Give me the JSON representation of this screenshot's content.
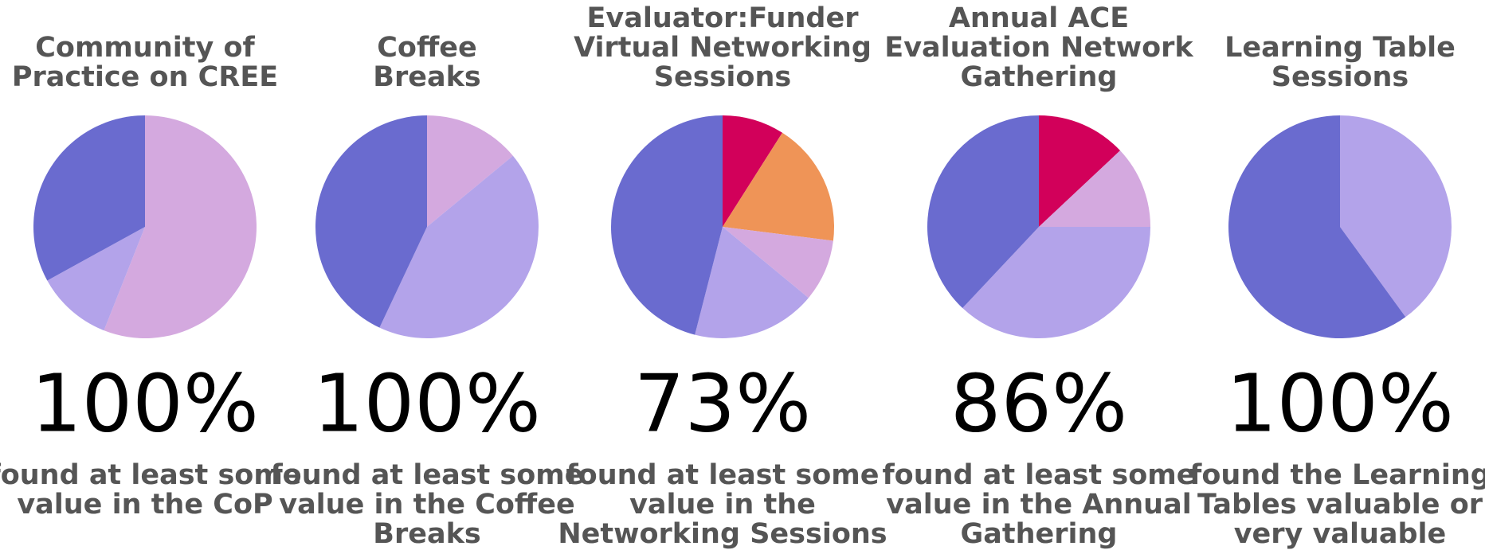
{
  "chart_data": [
    {
      "type": "pie",
      "title": [
        "Community of",
        "Practice on CREE"
      ],
      "values": [
        56,
        11,
        33
      ],
      "colors": [
        "#d4a9df",
        "#b3a3ea",
        "#6a6bcf"
      ],
      "stat": "100%",
      "caption": [
        "found at least some",
        "value in the CoP"
      ]
    },
    {
      "type": "pie",
      "title": [
        "Coffee",
        "Breaks"
      ],
      "values": [
        14,
        43,
        43
      ],
      "colors": [
        "#d4a9df",
        "#b3a3ea",
        "#6a6bcf"
      ],
      "stat": "100%",
      "caption": [
        "found at least some",
        "value in the Coffee",
        "Breaks"
      ]
    },
    {
      "type": "pie",
      "title": [
        "Evaluator:Funder",
        "Virtual Networking",
        "Sessions"
      ],
      "values": [
        9,
        18,
        9,
        18,
        46
      ],
      "colors": [
        "#d2005a",
        "#ef9457",
        "#d4a9df",
        "#b3a3ea",
        "#6a6bcf"
      ],
      "stat": "73%",
      "caption": [
        "found at least some",
        "value in the",
        "Networking Sessions"
      ]
    },
    {
      "type": "pie",
      "title": [
        "Annual ACE",
        "Evaluation Network",
        "Gathering"
      ],
      "values": [
        13,
        12,
        37,
        38
      ],
      "colors": [
        "#d2005a",
        "#d4a9df",
        "#b3a3ea",
        "#6a6bcf"
      ],
      "stat": "86%",
      "caption": [
        "found at least some",
        "value in the Annual",
        "Gathering"
      ]
    },
    {
      "type": "pie",
      "title": [
        "Learning Table",
        "Sessions"
      ],
      "values": [
        40,
        60
      ],
      "colors": [
        "#b3a3ea",
        "#6a6bcf"
      ],
      "stat": "100%",
      "caption": [
        "found the Learning",
        "Tables valuable or",
        "very valuable"
      ]
    }
  ]
}
